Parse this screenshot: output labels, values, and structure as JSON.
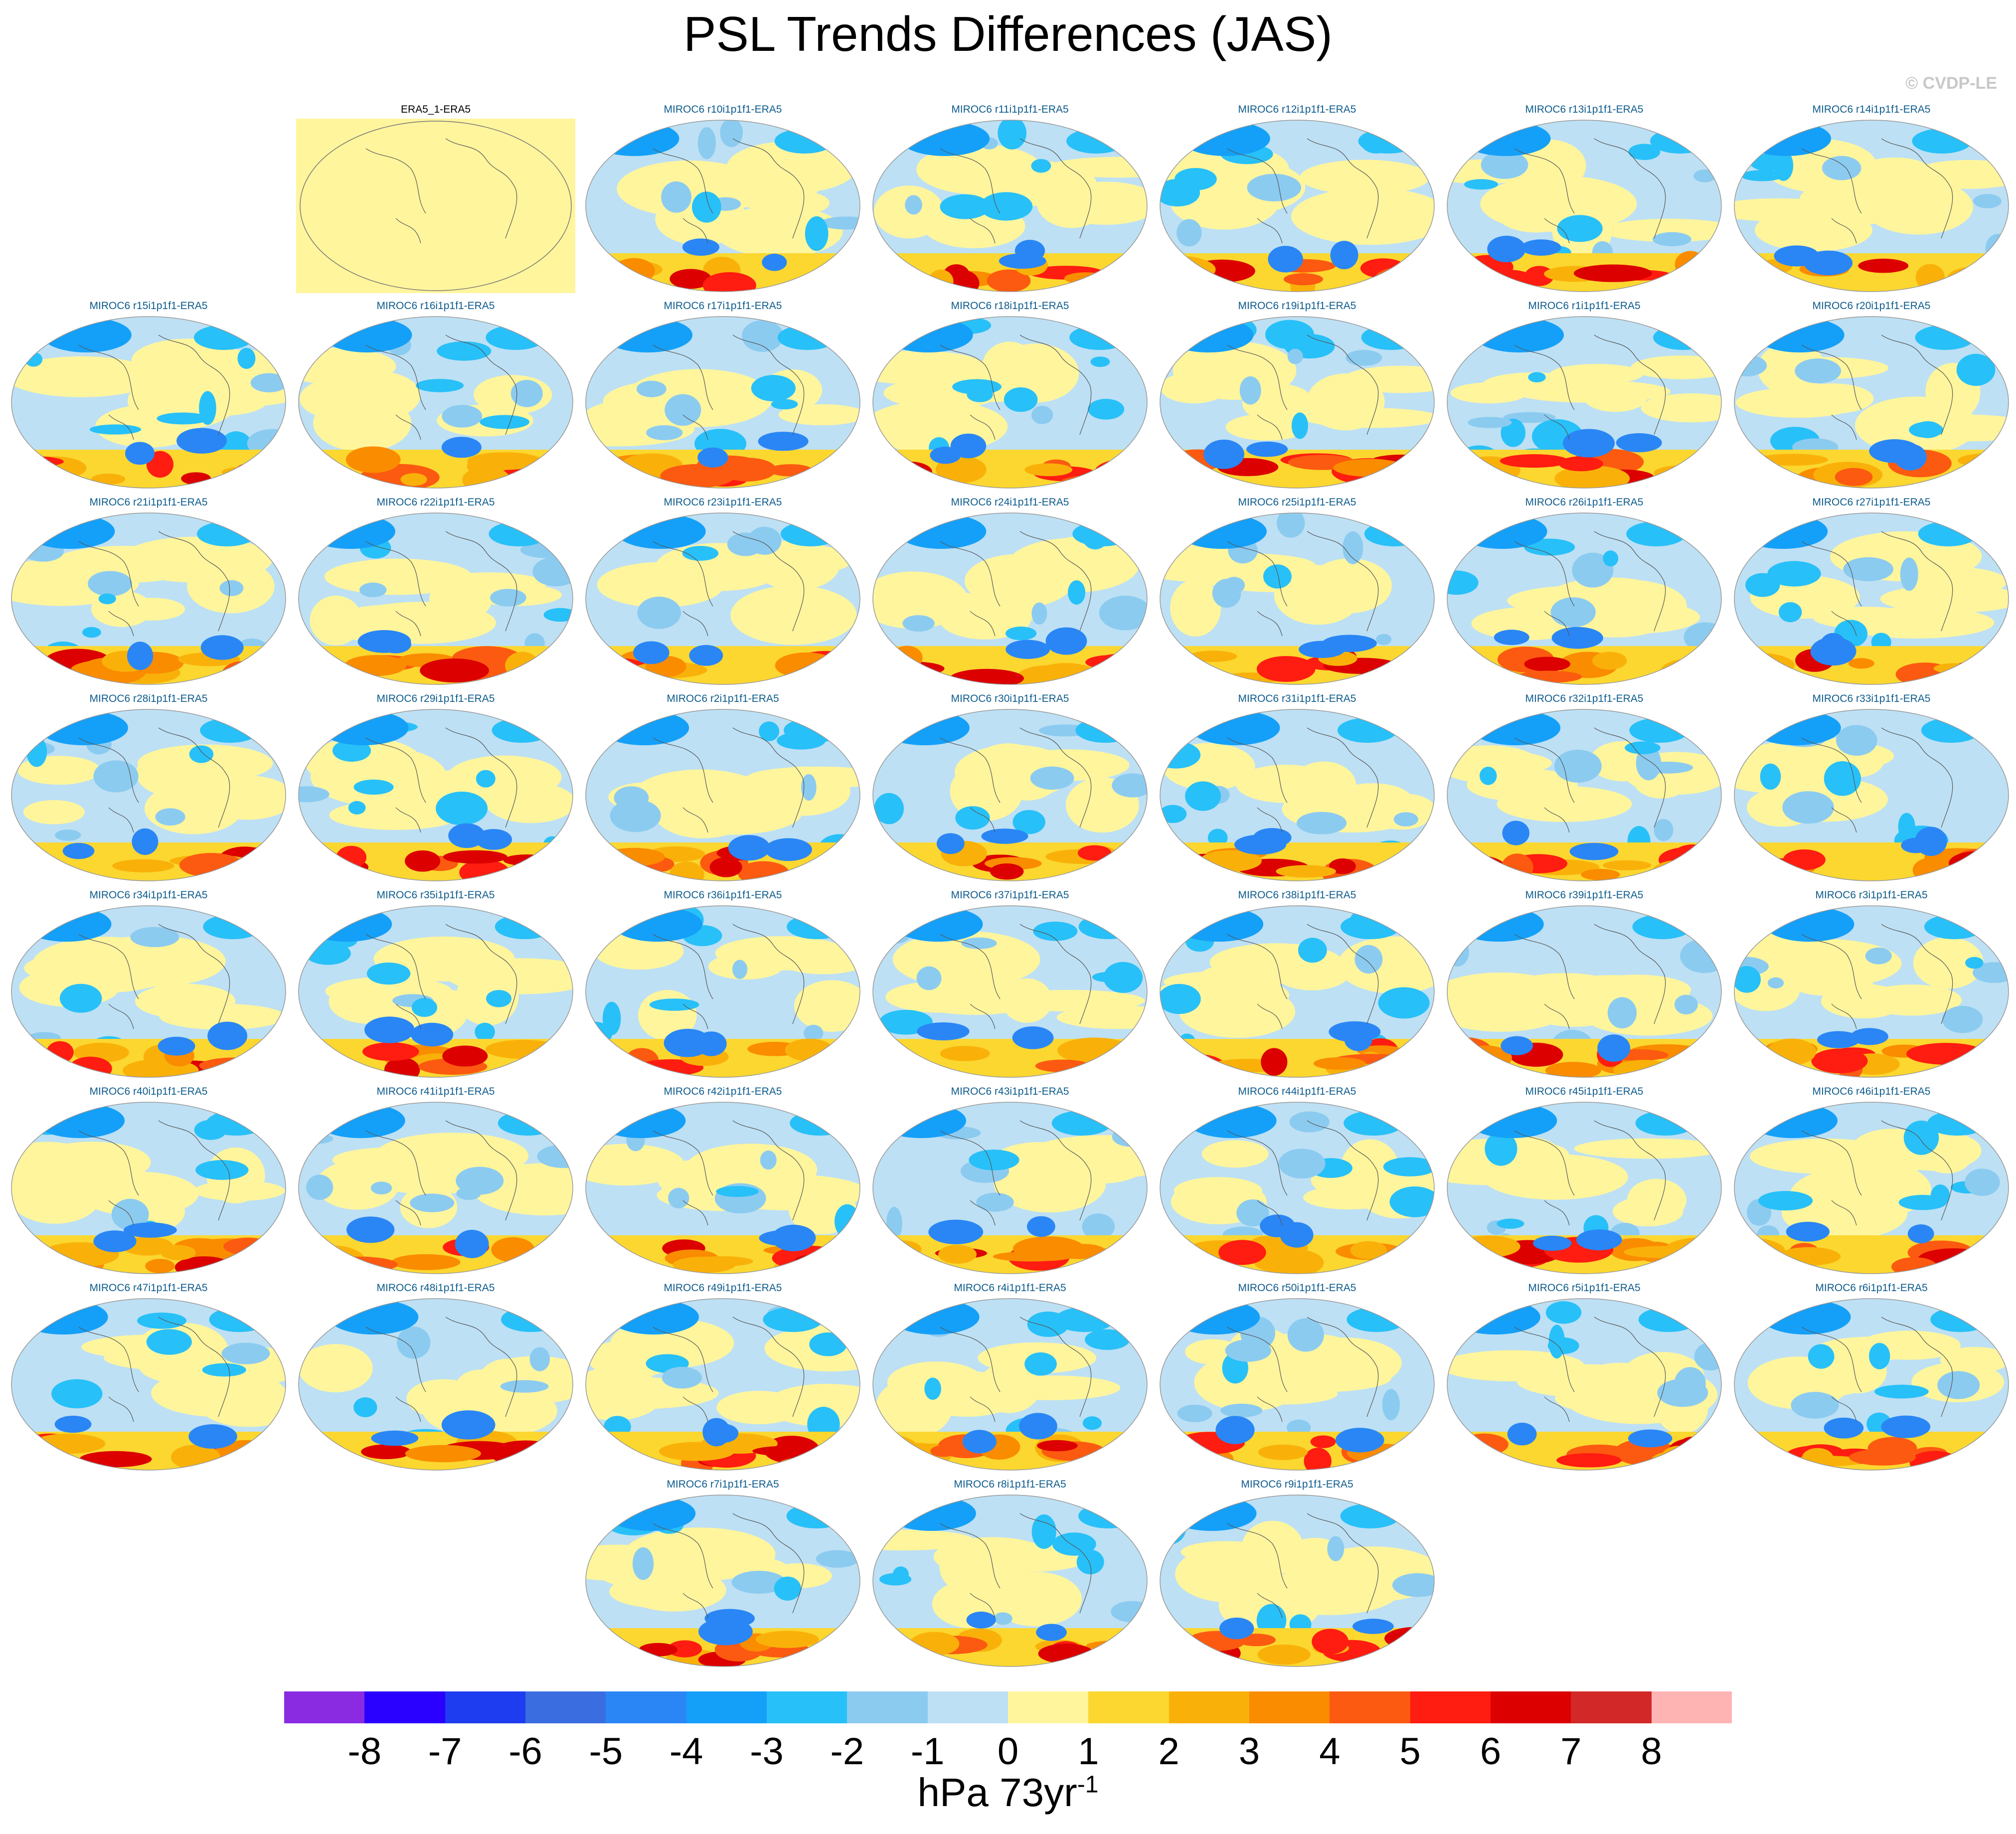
{
  "title": "PSL Trends Differences (JAS)",
  "watermark": "© CVDP-LE",
  "observation_panel": "ERA5_1-ERA5",
  "panels": [
    "MIROC6 r10i1p1f1-ERA5",
    "MIROC6 r11i1p1f1-ERA5",
    "MIROC6 r12i1p1f1-ERA5",
    "MIROC6 r13i1p1f1-ERA5",
    "MIROC6 r14i1p1f1-ERA5",
    "MIROC6 r15i1p1f1-ERA5",
    "MIROC6 r16i1p1f1-ERA5",
    "MIROC6 r17i1p1f1-ERA5",
    "MIROC6 r18i1p1f1-ERA5",
    "MIROC6 r19i1p1f1-ERA5",
    "MIROC6 r1i1p1f1-ERA5",
    "MIROC6 r20i1p1f1-ERA5",
    "MIROC6 r21i1p1f1-ERA5",
    "MIROC6 r22i1p1f1-ERA5",
    "MIROC6 r23i1p1f1-ERA5",
    "MIROC6 r24i1p1f1-ERA5",
    "MIROC6 r25i1p1f1-ERA5",
    "MIROC6 r26i1p1f1-ERA5",
    "MIROC6 r27i1p1f1-ERA5",
    "MIROC6 r28i1p1f1-ERA5",
    "MIROC6 r29i1p1f1-ERA5",
    "MIROC6 r2i1p1f1-ERA5",
    "MIROC6 r30i1p1f1-ERA5",
    "MIROC6 r31i1p1f1-ERA5",
    "MIROC6 r32i1p1f1-ERA5",
    "MIROC6 r33i1p1f1-ERA5",
    "MIROC6 r34i1p1f1-ERA5",
    "MIROC6 r35i1p1f1-ERA5",
    "MIROC6 r36i1p1f1-ERA5",
    "MIROC6 r37i1p1f1-ERA5",
    "MIROC6 r38i1p1f1-ERA5",
    "MIROC6 r39i1p1f1-ERA5",
    "MIROC6 r3i1p1f1-ERA5",
    "MIROC6 r40i1p1f1-ERA5",
    "MIROC6 r41i1p1f1-ERA5",
    "MIROC6 r42i1p1f1-ERA5",
    "MIROC6 r43i1p1f1-ERA5",
    "MIROC6 r44i1p1f1-ERA5",
    "MIROC6 r45i1p1f1-ERA5",
    "MIROC6 r46i1p1f1-ERA5",
    "MIROC6 r47i1p1f1-ERA5",
    "MIROC6 r48i1p1f1-ERA5",
    "MIROC6 r49i1p1f1-ERA5",
    "MIROC6 r4i1p1f1-ERA5",
    "MIROC6 r50i1p1f1-ERA5",
    "MIROC6 r5i1p1f1-ERA5",
    "MIROC6 r6i1p1f1-ERA5",
    "MIROC6 r7i1p1f1-ERA5",
    "MIROC6 r8i1p1f1-ERA5",
    "MIROC6 r9i1p1f1-ERA5"
  ],
  "colorbar": {
    "colors": [
      "#8a2be2",
      "#2a00ff",
      "#1e3cf0",
      "#3a6ee0",
      "#2a86f5",
      "#14a0f8",
      "#28c0f8",
      "#8ccbf0",
      "#bde0f4",
      "#fff59d",
      "#fbd730",
      "#f9b10a",
      "#fa8c00",
      "#fc5a10",
      "#ff1c10",
      "#dc0000",
      "#d22828",
      "#ffb4b4"
    ],
    "ticks": [
      "-8",
      "-7",
      "-6",
      "-5",
      "-4",
      "-3",
      "-2",
      "-1",
      "0",
      "1",
      "2",
      "3",
      "4",
      "5",
      "6",
      "7",
      "8"
    ],
    "units": "hPa 73yr",
    "units_exponent": "-1"
  }
}
